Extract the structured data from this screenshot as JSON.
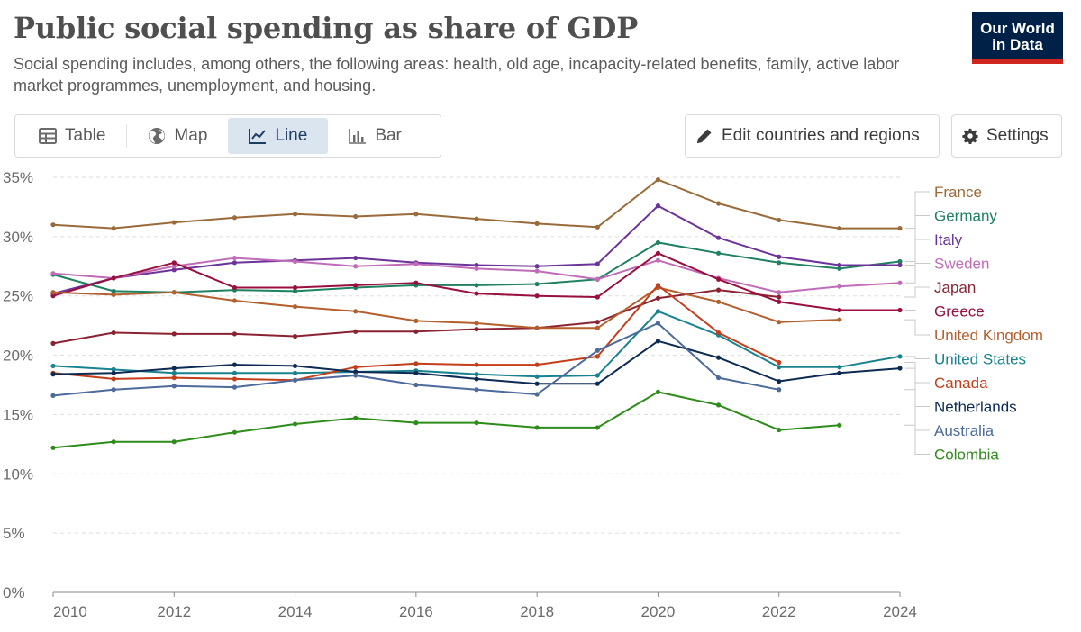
{
  "header": {
    "title": "Public social spending as share of GDP",
    "subtitle": "Social spending includes, among others, the following areas: health, old age, incapacity-related benefits, family, active labor market programmes, unemployment, and housing.",
    "logo_line1": "Our World",
    "logo_line2": "in Data"
  },
  "tabs": [
    {
      "label": "Table",
      "icon": "table-icon",
      "active": false
    },
    {
      "label": "Map",
      "icon": "globe-icon",
      "active": false
    },
    {
      "label": "Line",
      "icon": "line-chart-icon",
      "active": true
    },
    {
      "label": "Bar",
      "icon": "bar-chart-icon",
      "active": false
    }
  ],
  "controls": {
    "edit_label": "Edit countries and regions",
    "settings_label": "Settings"
  },
  "chart_data": {
    "type": "line",
    "title": "Public social spending as share of GDP",
    "xlim": [
      2010,
      2024
    ],
    "ylim": [
      0,
      35
    ],
    "x_ticks": [
      2010,
      2012,
      2014,
      2016,
      2018,
      2020,
      2022,
      2024
    ],
    "y_ticks": [
      0,
      5,
      10,
      15,
      20,
      25,
      30,
      35
    ],
    "y_unit": "%",
    "grid": "horizontal-dashed",
    "legend": "right",
    "series": [
      {
        "name": "France",
        "color": "#9a6b3a",
        "x": [
          2010,
          2011,
          2012,
          2013,
          2014,
          2015,
          2016,
          2017,
          2018,
          2019,
          2020,
          2021,
          2022,
          2023,
          2024
        ],
        "values": [
          31.0,
          30.7,
          31.2,
          31.6,
          31.9,
          31.7,
          31.9,
          31.5,
          31.1,
          30.8,
          34.8,
          32.8,
          31.4,
          30.7,
          30.7
        ]
      },
      {
        "name": "Germany",
        "color": "#1f8161",
        "x": [
          2010,
          2011,
          2012,
          2013,
          2014,
          2015,
          2016,
          2017,
          2018,
          2019,
          2020,
          2021,
          2022,
          2023,
          2024
        ],
        "values": [
          26.8,
          25.4,
          25.3,
          25.5,
          25.4,
          25.7,
          25.9,
          25.9,
          26.0,
          26.4,
          29.5,
          28.6,
          27.8,
          27.3,
          27.9
        ]
      },
      {
        "name": "Italy",
        "color": "#6c3399",
        "x": [
          2010,
          2011,
          2012,
          2013,
          2014,
          2015,
          2016,
          2017,
          2018,
          2019,
          2020,
          2021,
          2022,
          2023,
          2024
        ],
        "values": [
          25.2,
          26.5,
          27.2,
          27.8,
          28.0,
          28.2,
          27.8,
          27.6,
          27.5,
          27.7,
          32.6,
          29.9,
          28.3,
          27.6,
          27.6
        ]
      },
      {
        "name": "Sweden",
        "color": "#c06cb8",
        "x": [
          2010,
          2011,
          2012,
          2013,
          2014,
          2015,
          2016,
          2017,
          2018,
          2019,
          2020,
          2021,
          2022,
          2023,
          2024
        ],
        "values": [
          26.9,
          26.5,
          27.5,
          28.2,
          27.9,
          27.5,
          27.7,
          27.3,
          27.1,
          26.4,
          28.0,
          26.5,
          25.3,
          25.8,
          26.1
        ]
      },
      {
        "name": "Japan",
        "color": "#8a2232",
        "x": [
          2010,
          2011,
          2012,
          2013,
          2014,
          2015,
          2016,
          2017,
          2018,
          2019,
          2020,
          2021,
          2022
        ],
        "values": [
          21.0,
          21.9,
          21.8,
          21.8,
          21.6,
          22.0,
          22.0,
          22.2,
          22.3,
          22.8,
          24.8,
          25.5,
          24.9
        ]
      },
      {
        "name": "Greece",
        "color": "#990f3d",
        "x": [
          2010,
          2011,
          2012,
          2013,
          2014,
          2015,
          2016,
          2017,
          2018,
          2019,
          2020,
          2021,
          2022,
          2023,
          2024
        ],
        "values": [
          25.0,
          26.5,
          27.8,
          25.7,
          25.7,
          25.9,
          26.1,
          25.2,
          25.0,
          24.9,
          28.6,
          26.4,
          24.5,
          23.8,
          23.8
        ]
      },
      {
        "name": "United Kingdom",
        "color": "#b45f2d",
        "x": [
          2010,
          2011,
          2012,
          2013,
          2014,
          2015,
          2016,
          2017,
          2018,
          2019,
          2020,
          2021,
          2022,
          2023
        ],
        "values": [
          25.3,
          25.1,
          25.3,
          24.6,
          24.1,
          23.7,
          22.9,
          22.7,
          22.3,
          22.3,
          25.7,
          24.5,
          22.8,
          23.0
        ]
      },
      {
        "name": "United States",
        "color": "#18838f",
        "x": [
          2010,
          2011,
          2012,
          2013,
          2014,
          2015,
          2016,
          2017,
          2018,
          2019,
          2020,
          2021,
          2022,
          2023,
          2024
        ],
        "values": [
          19.1,
          18.8,
          18.5,
          18.5,
          18.5,
          18.6,
          18.7,
          18.4,
          18.2,
          18.3,
          23.7,
          21.7,
          19.0,
          19.0,
          19.9
        ]
      },
      {
        "name": "Canada",
        "color": "#c43e1a",
        "x": [
          2010,
          2011,
          2012,
          2013,
          2014,
          2015,
          2016,
          2017,
          2018,
          2019,
          2020,
          2021,
          2022
        ],
        "values": [
          18.5,
          18.0,
          18.1,
          18.0,
          17.9,
          19.0,
          19.3,
          19.2,
          19.2,
          19.9,
          25.9,
          21.9,
          19.4
        ]
      },
      {
        "name": "Netherlands",
        "color": "#0d2a52",
        "x": [
          2010,
          2011,
          2012,
          2013,
          2014,
          2015,
          2016,
          2017,
          2018,
          2019,
          2020,
          2021,
          2022,
          2023,
          2024
        ],
        "values": [
          18.4,
          18.5,
          18.9,
          19.2,
          19.1,
          18.6,
          18.5,
          18.0,
          17.6,
          17.6,
          21.2,
          19.8,
          17.8,
          18.5,
          18.9
        ]
      },
      {
        "name": "Australia",
        "color": "#4c6a9c",
        "x": [
          2010,
          2011,
          2012,
          2013,
          2014,
          2015,
          2016,
          2017,
          2018,
          2019,
          2020,
          2021,
          2022
        ],
        "values": [
          16.6,
          17.1,
          17.4,
          17.3,
          17.9,
          18.3,
          17.5,
          17.1,
          16.7,
          20.4,
          22.7,
          18.1,
          17.1
        ]
      },
      {
        "name": "Colombia",
        "color": "#2e8c1a",
        "x": [
          2010,
          2011,
          2012,
          2013,
          2014,
          2015,
          2016,
          2017,
          2018,
          2019,
          2020,
          2021,
          2022,
          2023
        ],
        "values": [
          12.2,
          12.7,
          12.7,
          13.5,
          14.2,
          14.7,
          14.3,
          14.3,
          13.9,
          13.9,
          16.9,
          15.8,
          13.7,
          14.1
        ]
      }
    ]
  }
}
